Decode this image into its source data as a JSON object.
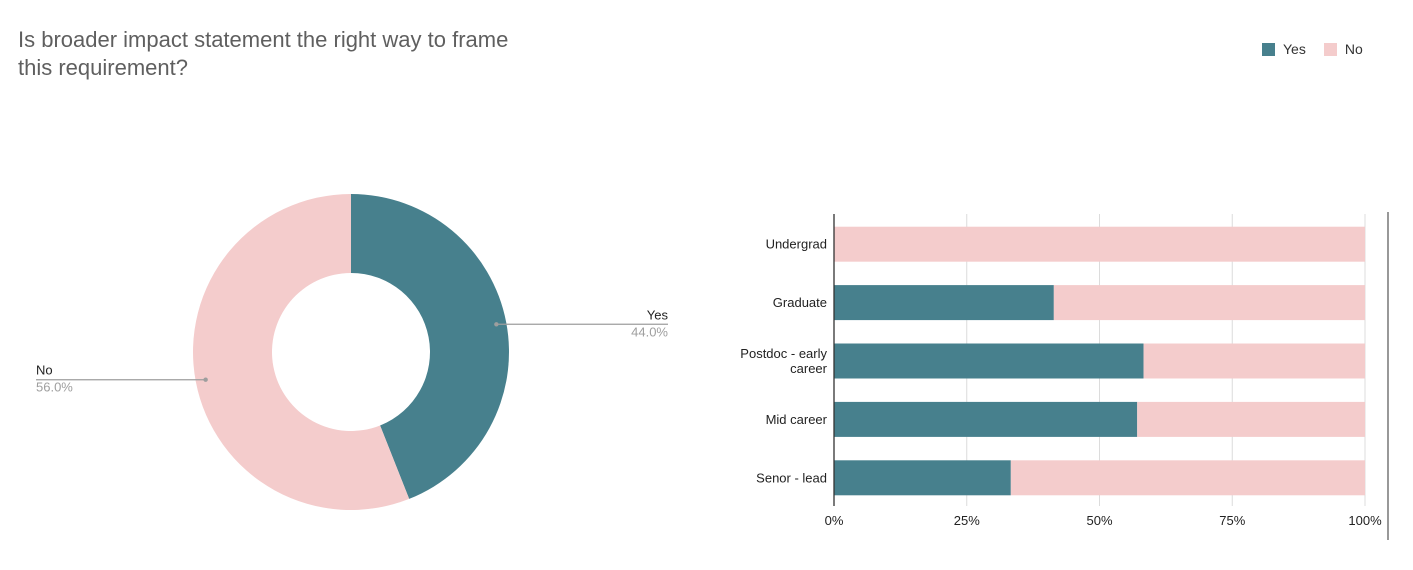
{
  "title": "Is broader impact statement the right way to frame this requirement?",
  "colors": {
    "yes": "#47808d",
    "no": "#f4cccc"
  },
  "legend": [
    {
      "label": "Yes",
      "color": "#47808d"
    },
    {
      "label": "No",
      "color": "#f4cccc"
    }
  ],
  "chart_data": [
    {
      "type": "pie",
      "donut": true,
      "slices": [
        {
          "label": "Yes",
          "value": 44.0,
          "display": "44.0%",
          "color": "#47808d"
        },
        {
          "label": "No",
          "value": 56.0,
          "display": "56.0%",
          "color": "#f4cccc"
        }
      ]
    },
    {
      "type": "bar",
      "orientation": "horizontal",
      "stacked": true,
      "normalized": true,
      "categories": [
        "Undergrad",
        "Graduate",
        "Postdoc - early career",
        "Mid career",
        "Senor - lead"
      ],
      "category_lines": [
        [
          "Undergrad"
        ],
        [
          "Graduate"
        ],
        [
          "Postdoc - early",
          "career"
        ],
        [
          "Mid career"
        ],
        [
          "Senor - lead"
        ]
      ],
      "series": [
        {
          "name": "Yes",
          "values": [
            0,
            41.4,
            58.3,
            57.1,
            33.3
          ],
          "color": "#47808d"
        },
        {
          "name": "No",
          "values": [
            100,
            58.6,
            41.7,
            42.9,
            66.7
          ],
          "color": "#f4cccc"
        }
      ],
      "xlim": [
        0,
        100
      ],
      "xticks": [
        "0%",
        "25%",
        "50%",
        "75%",
        "100%"
      ],
      "grid": true,
      "legend_position": "top-right"
    }
  ]
}
